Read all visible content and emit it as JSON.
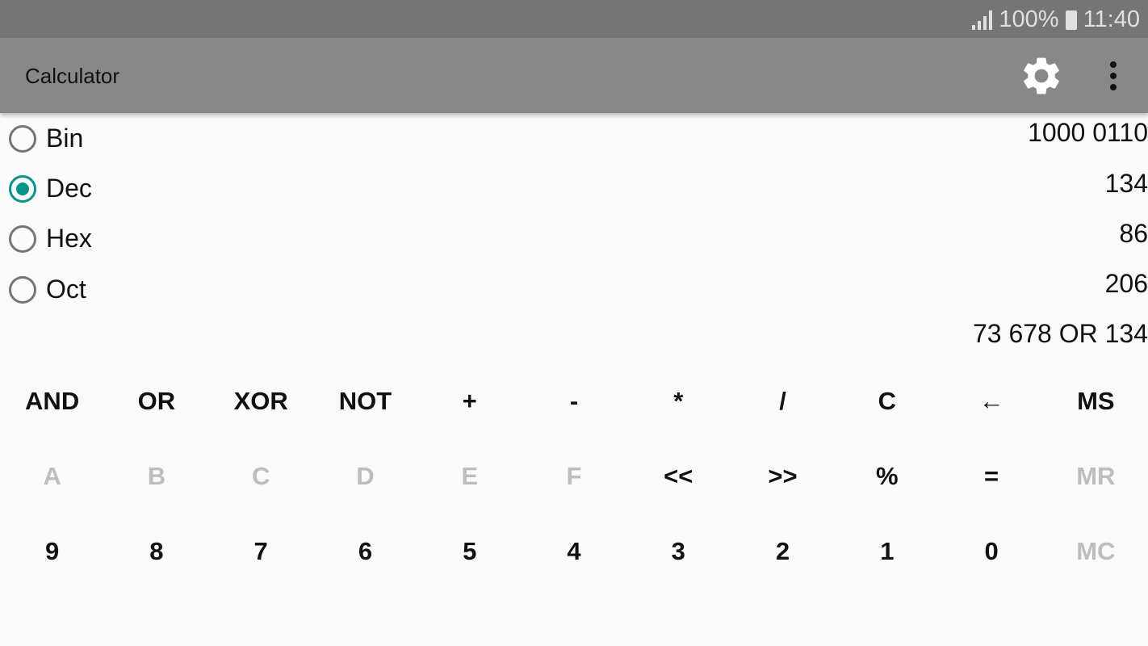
{
  "status_bar": {
    "battery": "100%",
    "time": "11:40"
  },
  "app_bar": {
    "title": "Calculator",
    "icons": [
      "gear-icon",
      "more-vert-icon"
    ]
  },
  "bases": [
    {
      "label": "Bin",
      "value": "1000 0110",
      "selected": false
    },
    {
      "label": "Dec",
      "value": "134",
      "selected": true
    },
    {
      "label": "Hex",
      "value": "86",
      "selected": false
    },
    {
      "label": "Oct",
      "value": "206",
      "selected": false
    }
  ],
  "expression": "73 678 OR 134",
  "colors": {
    "accent": "#009688",
    "app_bar": "#888888",
    "status_bar": "#757575",
    "disabled": "#bdbdbd"
  },
  "keys": [
    [
      {
        "label": "AND",
        "enabled": true
      },
      {
        "label": "OR",
        "enabled": true
      },
      {
        "label": "XOR",
        "enabled": true
      },
      {
        "label": "NOT",
        "enabled": true
      },
      {
        "label": "+",
        "enabled": true
      },
      {
        "label": "-",
        "enabled": true
      },
      {
        "label": "*",
        "enabled": true
      },
      {
        "label": "/",
        "enabled": true
      },
      {
        "label": "C",
        "enabled": true
      },
      {
        "label": "←",
        "enabled": true
      },
      {
        "label": "MS",
        "enabled": true
      }
    ],
    [
      {
        "label": "A",
        "enabled": false
      },
      {
        "label": "B",
        "enabled": false
      },
      {
        "label": "C",
        "enabled": false
      },
      {
        "label": "D",
        "enabled": false
      },
      {
        "label": "E",
        "enabled": false
      },
      {
        "label": "F",
        "enabled": false
      },
      {
        "label": "<<",
        "enabled": true
      },
      {
        "label": ">>",
        "enabled": true
      },
      {
        "label": "%",
        "enabled": true
      },
      {
        "label": "=",
        "enabled": true
      },
      {
        "label": "MR",
        "enabled": false
      }
    ],
    [
      {
        "label": "9",
        "enabled": true
      },
      {
        "label": "8",
        "enabled": true
      },
      {
        "label": "7",
        "enabled": true
      },
      {
        "label": "6",
        "enabled": true
      },
      {
        "label": "5",
        "enabled": true
      },
      {
        "label": "4",
        "enabled": true
      },
      {
        "label": "3",
        "enabled": true
      },
      {
        "label": "2",
        "enabled": true
      },
      {
        "label": "1",
        "enabled": true
      },
      {
        "label": "0",
        "enabled": true
      },
      {
        "label": "MC",
        "enabled": false
      }
    ]
  ]
}
